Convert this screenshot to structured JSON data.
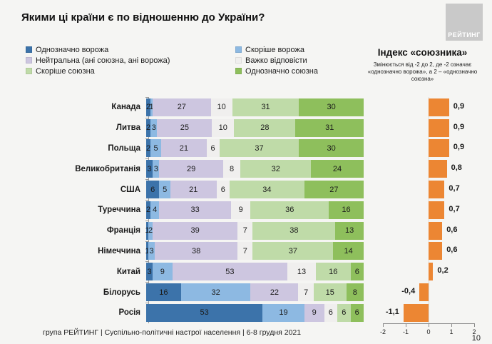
{
  "page": {
    "title": "Якими ці країни є по відношенню до України?",
    "logo_text": "РЕЙТИНГ",
    "footer": "група РЕЙТИНГ | Суспільно-політичні настрої населення | 6-8 грудня 2021",
    "page_number": "10"
  },
  "legend": {
    "items": [
      {
        "label": "Однозначно ворожа",
        "color": "#3c73aa"
      },
      {
        "label": "Скоріше ворожа",
        "color": "#8db9e2"
      },
      {
        "label": "Нейтральна (ані союзна, ані ворожа)",
        "color": "#cdc6e0"
      },
      {
        "label": "Важко відповісти",
        "color": "#f0efee"
      },
      {
        "label": "Скоріше союзна",
        "color": "#bfdba8"
      },
      {
        "label": "Однозначно союзна",
        "color": "#8ebf5c"
      }
    ],
    "columns": [
      [
        0,
        2,
        4
      ],
      [
        1,
        3,
        5
      ]
    ]
  },
  "index_panel": {
    "title": "Індекс «союзника»",
    "description": "Змінюється від -2 до 2, де -2 означає «однозначно ворожа», а 2 – «однозначно союзна»",
    "bar_color": "#ec8633",
    "axis_ticks": [
      {
        "value": -2,
        "label": "-2"
      },
      {
        "value": -1,
        "label": "-1"
      },
      {
        "value": 0,
        "label": "0"
      },
      {
        "value": 1,
        "label": "1"
      },
      {
        "value": 2,
        "label": "2"
      }
    ],
    "axis_range": [
      -2,
      2
    ]
  },
  "chart_data": {
    "type": "bar",
    "orientation": "horizontal",
    "stacked": true,
    "title": "Якими ці країни є по відношенню до України?",
    "series_names": [
      "Однозначно ворожа",
      "Скоріше ворожа",
      "Нейтральна (ані союзна, ані ворожа)",
      "Важко відповісти",
      "Скоріше союзна",
      "Однозначно союзна"
    ],
    "series_colors": [
      "#3c73aa",
      "#8db9e2",
      "#cdc6e0",
      "#f0efee",
      "#bfdba8",
      "#8ebf5c"
    ],
    "xlim": [
      0,
      100
    ],
    "rows": [
      {
        "country": "Канада",
        "values": [
          2,
          1,
          27,
          10,
          31,
          30
        ],
        "index": 0.9,
        "index_label": "0,9"
      },
      {
        "country": "Литва",
        "values": [
          2,
          3,
          25,
          10,
          28,
          31
        ],
        "index": 0.9,
        "index_label": "0,9"
      },
      {
        "country": "Польща",
        "values": [
          2,
          5,
          21,
          6,
          37,
          30
        ],
        "index": 0.9,
        "index_label": "0,9"
      },
      {
        "country": "Великобританія",
        "values": [
          3,
          3,
          29,
          8,
          32,
          24
        ],
        "index": 0.8,
        "index_label": "0,8"
      },
      {
        "country": "США",
        "values": [
          6,
          5,
          21,
          6,
          34,
          27
        ],
        "index": 0.7,
        "index_label": "0,7"
      },
      {
        "country": "Туреччина",
        "values": [
          2,
          4,
          33,
          9,
          36,
          16
        ],
        "index": 0.7,
        "index_label": "0,7"
      },
      {
        "country": "Франція",
        "values": [
          1,
          2,
          39,
          7,
          38,
          13
        ],
        "index": 0.6,
        "index_label": "0,6"
      },
      {
        "country": "Німеччина",
        "values": [
          1,
          3,
          38,
          7,
          37,
          14
        ],
        "index": 0.6,
        "index_label": "0,6"
      },
      {
        "country": "Китай",
        "values": [
          3,
          9,
          53,
          13,
          16,
          6
        ],
        "index": 0.2,
        "index_label": "0,2"
      },
      {
        "country": "Білорусь",
        "values": [
          16,
          32,
          22,
          7,
          15,
          8
        ],
        "index": -0.4,
        "index_label": "-0,4"
      },
      {
        "country": "Росія",
        "values": [
          53,
          19,
          9,
          6,
          6,
          6
        ],
        "index": -1.1,
        "index_label": "-1,1"
      }
    ]
  }
}
